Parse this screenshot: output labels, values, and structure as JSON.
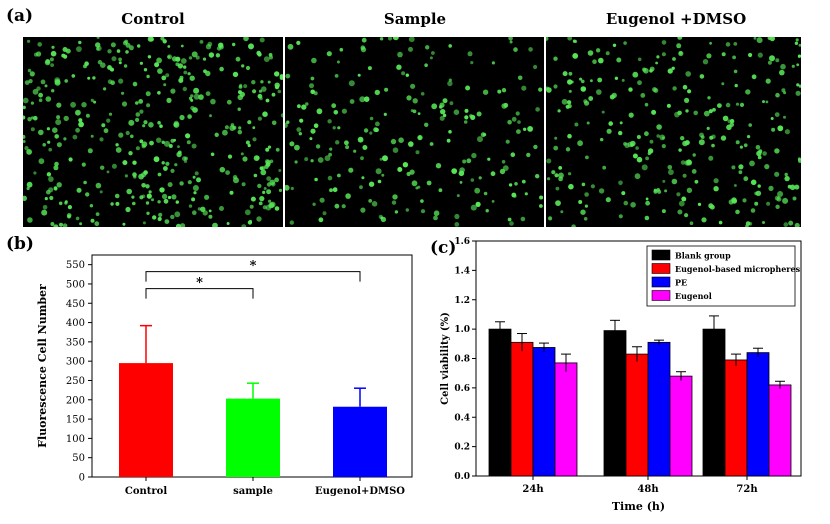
{
  "panels": {
    "a": "(a)",
    "b": "(b)",
    "c": "(c)"
  },
  "micrographs": [
    {
      "title": "Control",
      "density": 430
    },
    {
      "title": "Sample",
      "density": 230
    },
    {
      "title": "Eugenol +DMSO",
      "density": 300
    }
  ],
  "colors": {
    "red": "#ff0000",
    "green": "#00ff00",
    "blue": "#0000ff",
    "black": "#000000",
    "magenta": "#ff00ff",
    "cell": "#58e858"
  },
  "chart_data": [
    {
      "type": "bar",
      "panel": "b",
      "categories": [
        "Control",
        "sample",
        "Eugenol+DMSO"
      ],
      "values": [
        295,
        203,
        182
      ],
      "errors": [
        97,
        40,
        48
      ],
      "colors": [
        "#ff0000",
        "#00ff00",
        "#0000ff"
      ],
      "title": "",
      "xlabel": "",
      "ylabel": "Fluorescence Cell Number",
      "ylim": [
        0,
        575
      ],
      "yticks": [
        0,
        50,
        100,
        150,
        200,
        250,
        300,
        350,
        400,
        450,
        500,
        550
      ],
      "significance": [
        {
          "from": 0,
          "to": 1,
          "label": "*"
        },
        {
          "from": 0,
          "to": 2,
          "label": "*"
        }
      ]
    },
    {
      "type": "bar",
      "panel": "c",
      "categories": [
        "24h",
        "48h",
        "72h"
      ],
      "series": [
        {
          "name": "Blank group",
          "color": "#000000",
          "values": [
            1.0,
            0.99,
            1.0
          ],
          "errors": [
            0.05,
            0.07,
            0.09
          ]
        },
        {
          "name": "Eugenol-based micropheres",
          "color": "#ff0000",
          "values": [
            0.91,
            0.83,
            0.79
          ],
          "errors": [
            0.06,
            0.05,
            0.04
          ]
        },
        {
          "name": "PE",
          "color": "#0000ff",
          "values": [
            0.875,
            0.91,
            0.84
          ],
          "errors": [
            0.03,
            0.015,
            0.03
          ]
        },
        {
          "name": "Eugenol",
          "color": "#ff00ff",
          "values": [
            0.77,
            0.68,
            0.62
          ],
          "errors": [
            0.06,
            0.03,
            0.025
          ]
        }
      ],
      "title": "",
      "xlabel": "Time (h)",
      "ylabel": "Cell viability (%)",
      "ylim": [
        0,
        1.6
      ],
      "yticks": [
        "0.0",
        "0.2",
        "0.4",
        "0.6",
        "0.8",
        "1.0",
        "1.2",
        "1.4",
        "1.6"
      ],
      "legend": "top-right"
    }
  ]
}
